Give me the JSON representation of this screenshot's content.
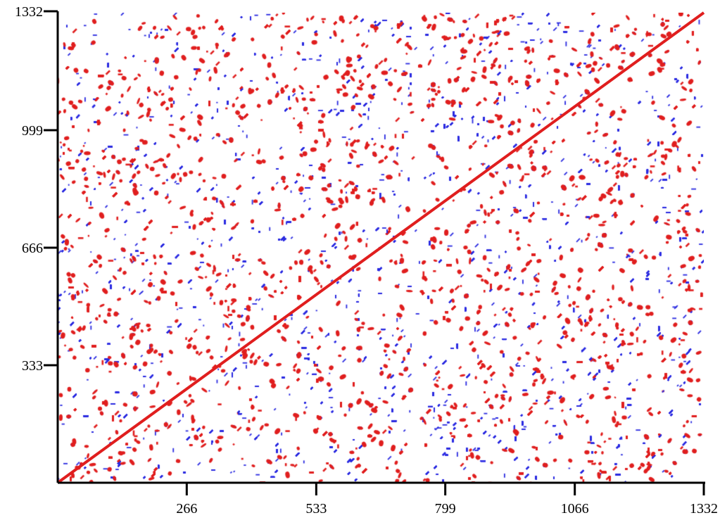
{
  "chart_data": {
    "type": "scatter",
    "title": "",
    "xlabel": "",
    "ylabel": "",
    "xlim": [
      0,
      1332
    ],
    "ylim": [
      0,
      1332
    ],
    "xticks": [
      266,
      533,
      799,
      1066,
      1332
    ],
    "yticks": [
      333,
      666,
      999,
      1332
    ],
    "grid": false,
    "legend": "none",
    "series": [
      {
        "color": "#2a2ae0",
        "description": "dense background dot pattern"
      },
      {
        "color": "#e01e1e",
        "description": "secondary dot pattern"
      },
      {
        "color": "#e01e1e",
        "description": "main diagonal line",
        "x": [
          0,
          1332
        ],
        "y": [
          0,
          1332
        ]
      }
    ],
    "pattern_columns": [
      {
        "x": [
          0,
          480
        ],
        "density": 0.55
      },
      {
        "x": [
          480,
          1060
        ],
        "density": 0.5
      },
      {
        "x": [
          1060,
          1332
        ],
        "density": 0.45
      }
    ],
    "pattern_gaps_x": [
      260,
      430,
      740,
      1060,
      1200
    ],
    "pattern_rows_y": [
      [
        40,
        230
      ],
      [
        300,
        660
      ],
      [
        560,
        620
      ],
      [
        820,
        960
      ],
      [
        1060,
        1300
      ]
    ]
  }
}
